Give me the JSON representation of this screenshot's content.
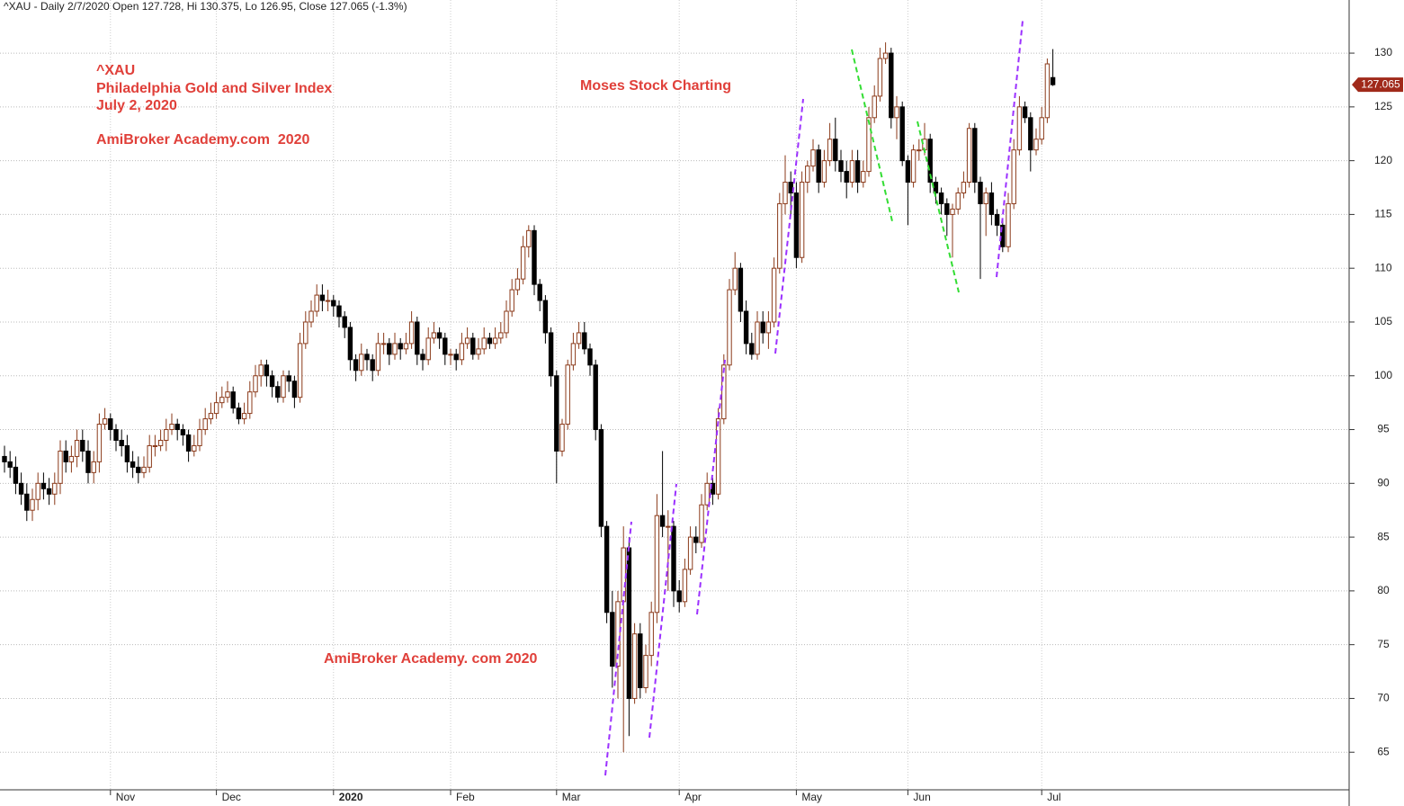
{
  "chart_data": {
    "type": "candlestick",
    "title": "^XAU - Daily 2/7/2020 Open 127.728, Hi 130.375, Lo 126.95, Close 127.065 (-1.3%)",
    "annotations": [
      "^XAU",
      "Philadelphia Gold and Silver Index",
      "July 2, 2020",
      "AmiBroker Academy.com  2020",
      "Moses Stock Charting",
      "AmiBroker Academy. com 2020"
    ],
    "up_color": "#8b3a1a",
    "down_color": "#000000",
    "grid": true,
    "ylim": [
      60,
      134.94
    ],
    "yticks": [
      65,
      70,
      75,
      80,
      85,
      90,
      95,
      100,
      105,
      110,
      115,
      120,
      125,
      130
    ],
    "categories": [
      null,
      null,
      null,
      null,
      null,
      null,
      null,
      null,
      null,
      null,
      null,
      null,
      null,
      null,
      null,
      null,
      null,
      null,
      null,
      "Nov",
      null,
      null,
      null,
      null,
      null,
      null,
      null,
      null,
      null,
      null,
      null,
      null,
      null,
      null,
      null,
      null,
      null,
      null,
      "Dec",
      null,
      null,
      null,
      null,
      null,
      null,
      null,
      null,
      null,
      null,
      null,
      null,
      null,
      null,
      null,
      null,
      null,
      null,
      null,
      null,
      "2020",
      null,
      null,
      null,
      null,
      null,
      null,
      null,
      null,
      null,
      null,
      null,
      null,
      null,
      null,
      null,
      null,
      null,
      null,
      null,
      null,
      "Feb",
      null,
      null,
      null,
      null,
      null,
      null,
      null,
      null,
      null,
      null,
      null,
      null,
      null,
      null,
      null,
      null,
      null,
      null,
      "Mar",
      null,
      null,
      null,
      null,
      null,
      null,
      null,
      null,
      null,
      null,
      null,
      null,
      null,
      null,
      null,
      null,
      null,
      null,
      null,
      null,
      null,
      "Apr",
      null,
      null,
      null,
      null,
      null,
      null,
      null,
      null,
      null,
      null,
      null,
      null,
      null,
      null,
      null,
      null,
      null,
      null,
      null,
      null,
      "May",
      null,
      null,
      null,
      null,
      null,
      null,
      null,
      null,
      null,
      null,
      null,
      null,
      null,
      null,
      null,
      null,
      null,
      null,
      null,
      "Jun",
      null,
      null,
      null,
      null,
      null,
      null,
      null,
      null,
      null,
      null,
      null,
      null,
      null,
      null,
      null,
      null,
      null,
      null,
      null,
      null,
      null,
      null,
      null,
      "Jul",
      null,
      null
    ],
    "ohlc": [
      [
        92.5,
        93.5,
        91,
        92
      ],
      [
        92,
        93,
        90.5,
        91.5
      ],
      [
        91.5,
        92.5,
        89,
        90
      ],
      [
        90,
        91,
        88,
        89
      ],
      [
        89,
        90,
        86.5,
        87.5
      ],
      [
        87.5,
        89.5,
        86.5,
        88.5
      ],
      [
        88.5,
        91,
        87.5,
        90
      ],
      [
        90,
        91,
        88.5,
        89.5
      ],
      [
        89.5,
        90.5,
        88,
        89
      ],
      [
        89,
        91,
        88,
        90
      ],
      [
        90,
        94,
        89,
        93
      ],
      [
        93,
        94,
        91,
        92
      ],
      [
        92,
        93.5,
        91,
        92.5
      ],
      [
        92.5,
        95,
        91.5,
        94
      ],
      [
        94,
        95,
        92,
        93
      ],
      [
        93,
        94,
        90,
        91
      ],
      [
        91,
        93,
        90,
        92
      ],
      [
        92,
        96.5,
        91,
        95.5
      ],
      [
        95.5,
        97,
        95,
        96
      ],
      [
        96,
        96.5,
        94,
        95
      ],
      [
        95,
        95.5,
        93,
        94
      ],
      [
        94,
        95,
        92.5,
        93.5
      ],
      [
        93.5,
        94.5,
        91,
        92
      ],
      [
        92,
        93,
        90.5,
        91.5
      ],
      [
        91.5,
        92.5,
        90,
        91
      ],
      [
        91,
        92.5,
        90.5,
        91.5
      ],
      [
        91.5,
        94.5,
        91,
        93.5
      ],
      [
        93.5,
        94.5,
        92.5,
        93.5
      ],
      [
        93.5,
        95,
        93,
        94
      ],
      [
        94,
        96,
        93,
        95
      ],
      [
        95,
        96.5,
        94.5,
        95.5
      ],
      [
        95.5,
        96,
        94,
        95
      ],
      [
        95,
        95.5,
        93.5,
        94.5
      ],
      [
        94.5,
        95,
        92,
        93
      ],
      [
        93,
        94.5,
        92.5,
        93.5
      ],
      [
        93.5,
        96,
        93,
        95
      ],
      [
        95,
        97,
        94.5,
        96
      ],
      [
        96,
        97.5,
        95.5,
        96.5
      ],
      [
        96.5,
        98.5,
        96,
        97.5
      ],
      [
        97.5,
        99,
        97,
        98
      ],
      [
        98,
        99.5,
        97.5,
        98.5
      ],
      [
        98.5,
        99,
        96.5,
        97
      ],
      [
        97,
        97.5,
        95.5,
        96
      ],
      [
        96,
        97.5,
        95.5,
        96.5
      ],
      [
        96.5,
        99.5,
        96,
        98.5
      ],
      [
        98.5,
        101,
        98,
        100
      ],
      [
        100,
        101.5,
        99,
        101
      ],
      [
        101,
        101.5,
        99,
        100
      ],
      [
        100,
        100.5,
        98,
        99
      ],
      [
        99,
        99.5,
        97.5,
        98
      ],
      [
        98,
        100.5,
        97.5,
        100
      ],
      [
        100,
        100.5,
        98.5,
        99.5
      ],
      [
        99.5,
        100,
        97,
        98
      ],
      [
        98,
        104,
        97.5,
        103
      ],
      [
        103,
        106,
        102.5,
        105
      ],
      [
        105,
        107,
        104.5,
        106
      ],
      [
        106,
        108.5,
        105.5,
        107.5
      ],
      [
        107.5,
        108.5,
        106,
        107
      ],
      [
        107,
        108,
        106,
        107
      ],
      [
        107,
        107.5,
        105.5,
        106.5
      ],
      [
        106.5,
        107,
        104.5,
        105.5
      ],
      [
        105.5,
        106,
        103.5,
        104.5
      ],
      [
        104.5,
        105,
        100.5,
        101.5
      ],
      [
        101.5,
        102,
        99.5,
        100.5
      ],
      [
        100.5,
        103,
        100,
        102
      ],
      [
        102,
        102.5,
        100.5,
        101.5
      ],
      [
        101.5,
        102,
        99.5,
        100.5
      ],
      [
        100.5,
        104,
        100,
        103
      ],
      [
        103,
        104,
        102,
        103
      ],
      [
        103,
        103.5,
        101,
        102
      ],
      [
        102,
        104,
        101.5,
        103
      ],
      [
        103,
        103.5,
        101.5,
        102.5
      ],
      [
        102.5,
        104,
        102,
        103
      ],
      [
        103,
        106,
        102.5,
        105
      ],
      [
        105,
        105.5,
        101,
        102
      ],
      [
        102,
        102.5,
        100.5,
        101.5
      ],
      [
        101.5,
        104.5,
        101,
        103.5
      ],
      [
        103.5,
        105,
        103,
        104
      ],
      [
        104,
        104.5,
        102.5,
        103.5
      ],
      [
        103.5,
        104,
        101,
        102
      ],
      [
        102,
        102.5,
        101,
        102
      ],
      [
        102,
        102.5,
        100.5,
        101.5
      ],
      [
        101.5,
        104,
        101,
        103
      ],
      [
        103,
        104.5,
        102.5,
        103.5
      ],
      [
        103.5,
        104,
        101.5,
        102
      ],
      [
        102,
        103.5,
        101.5,
        102.5
      ],
      [
        102.5,
        104.5,
        102,
        103.5
      ],
      [
        103.5,
        104,
        102.5,
        103
      ],
      [
        103,
        104.5,
        102.5,
        103.5
      ],
      [
        103.5,
        105,
        103,
        104
      ],
      [
        104,
        107,
        103.5,
        106
      ],
      [
        106,
        109,
        105.5,
        108
      ],
      [
        108,
        110,
        107.5,
        109
      ],
      [
        109,
        113,
        108.5,
        112
      ],
      [
        112,
        114,
        111,
        113.5
      ],
      [
        113.5,
        114,
        107.5,
        108.5
      ],
      [
        108.5,
        109,
        106,
        107
      ],
      [
        107,
        107.5,
        103,
        104
      ],
      [
        104,
        104.5,
        99,
        100
      ],
      [
        100,
        100.5,
        90,
        93
      ],
      [
        93,
        96,
        92.5,
        95.5
      ],
      [
        95.5,
        101.5,
        95,
        101
      ],
      [
        101,
        104,
        100.5,
        103
      ],
      [
        103,
        105,
        102.5,
        104
      ],
      [
        104,
        105,
        102,
        102.5
      ],
      [
        102.5,
        103,
        100,
        101
      ],
      [
        101,
        101.5,
        94,
        95
      ],
      [
        95,
        95.5,
        85,
        86
      ],
      [
        86,
        86.5,
        77,
        78
      ],
      [
        78,
        80,
        71,
        73
      ],
      [
        73,
        80,
        70,
        79
      ],
      [
        79,
        86,
        65,
        84
      ],
      [
        84,
        85,
        66.5,
        70
      ],
      [
        70,
        77,
        69.5,
        76
      ],
      [
        76,
        77,
        70,
        71
      ],
      [
        71,
        75,
        70.5,
        74
      ],
      [
        74,
        79,
        73,
        78
      ],
      [
        78,
        89,
        77,
        87
      ],
      [
        87,
        93,
        85,
        86
      ],
      [
        86,
        87.5,
        80,
        86
      ],
      [
        86,
        86.5,
        78.5,
        80
      ],
      [
        80,
        81,
        78,
        79
      ],
      [
        79,
        83,
        78.5,
        82
      ],
      [
        82,
        86,
        81.5,
        85
      ],
      [
        85,
        86,
        83.5,
        84.5
      ],
      [
        84.5,
        89,
        84,
        88
      ],
      [
        88,
        91,
        87.5,
        90
      ],
      [
        90,
        90.5,
        88,
        89
      ],
      [
        89,
        97,
        88.5,
        96
      ],
      [
        96,
        102,
        95.5,
        101
      ],
      [
        101,
        109,
        100.5,
        108
      ],
      [
        108,
        111.5,
        107.5,
        110
      ],
      [
        110,
        110.5,
        105,
        106
      ],
      [
        106,
        107,
        102,
        103
      ],
      [
        103,
        104,
        101.5,
        102
      ],
      [
        102,
        106,
        101.5,
        105
      ],
      [
        105,
        106,
        103,
        104
      ],
      [
        104,
        106,
        102.5,
        105
      ],
      [
        105,
        111,
        104.5,
        110
      ],
      [
        110,
        117,
        109.5,
        116
      ],
      [
        116,
        120.5,
        115,
        118
      ],
      [
        118,
        119,
        115,
        117
      ],
      [
        117,
        118,
        110,
        111
      ],
      [
        111,
        119,
        110.5,
        118
      ],
      [
        118,
        120,
        117,
        119.5
      ],
      [
        119.5,
        122,
        119,
        121
      ],
      [
        121,
        121.5,
        117,
        118
      ],
      [
        118,
        121,
        117.5,
        120
      ],
      [
        120,
        123.5,
        119.5,
        122
      ],
      [
        122,
        124,
        119,
        120
      ],
      [
        120,
        121,
        118,
        119
      ],
      [
        119,
        120,
        116.5,
        118
      ],
      [
        118,
        121,
        117.5,
        120
      ],
      [
        120,
        121,
        117,
        118
      ],
      [
        118,
        120,
        117.5,
        119
      ],
      [
        119,
        125,
        118.5,
        124
      ],
      [
        124,
        127,
        123.5,
        126
      ],
      [
        126,
        130.5,
        125.5,
        129.5
      ],
      [
        129.5,
        131,
        129,
        130
      ],
      [
        130,
        130.5,
        123,
        124
      ],
      [
        124,
        126,
        122,
        125
      ],
      [
        125,
        125.5,
        119.5,
        120
      ],
      [
        120,
        120.5,
        114,
        118
      ],
      [
        118,
        121.5,
        117.5,
        121
      ],
      [
        121,
        122,
        120,
        121
      ],
      [
        121,
        123.5,
        120.5,
        122
      ],
      [
        122,
        122.5,
        117,
        118
      ],
      [
        118,
        118.5,
        116,
        117
      ],
      [
        117,
        117.5,
        115,
        116
      ],
      [
        116,
        116.5,
        113,
        115
      ],
      [
        115,
        116,
        111,
        115.5
      ],
      [
        115.5,
        117.5,
        115,
        117
      ],
      [
        117,
        119,
        116.5,
        118
      ],
      [
        118,
        123.5,
        117.5,
        123
      ],
      [
        123,
        123.5,
        117,
        118
      ],
      [
        118,
        118.5,
        109,
        116
      ],
      [
        116,
        117.5,
        113,
        117
      ],
      [
        117,
        118,
        114,
        115
      ],
      [
        115,
        115.5,
        113,
        114
      ],
      [
        114,
        114.5,
        111.5,
        112
      ],
      [
        112,
        117,
        111.5,
        116
      ],
      [
        116,
        122,
        115.5,
        121
      ],
      [
        121,
        126,
        120.5,
        125
      ],
      [
        125,
        125.5,
        123.5,
        124
      ],
      [
        124,
        124.5,
        119,
        121
      ],
      [
        121,
        123,
        120.5,
        122
      ],
      [
        122,
        125,
        121.5,
        124
      ],
      [
        124,
        129.5,
        123.5,
        129
      ],
      [
        127.728,
        130.375,
        126.95,
        127.065
      ]
    ]
  }
}
